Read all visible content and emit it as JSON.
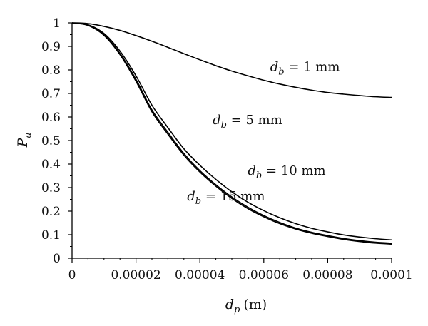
{
  "chart_data": {
    "type": "line",
    "title": "",
    "xlabel": {
      "var": "d",
      "sub": "p",
      "unit": "(m)"
    },
    "ylabel": {
      "var": "P",
      "sub": "a"
    },
    "xlim": [
      0,
      0.0001
    ],
    "ylim": [
      0,
      1
    ],
    "x_ticks": [
      {
        "value": 0,
        "label": "0"
      },
      {
        "value": 2e-05,
        "label": "0.00002"
      },
      {
        "value": 4e-05,
        "label": "0.00004"
      },
      {
        "value": 6e-05,
        "label": "0.00006"
      },
      {
        "value": 8e-05,
        "label": "0.00008"
      },
      {
        "value": 0.0001,
        "label": "0.0001"
      }
    ],
    "y_ticks": [
      {
        "value": 0,
        "label": "0"
      },
      {
        "value": 0.1,
        "label": "0.1"
      },
      {
        "value": 0.2,
        "label": "0.2"
      },
      {
        "value": 0.3,
        "label": "0.3"
      },
      {
        "value": 0.4,
        "label": "0.4"
      },
      {
        "value": 0.5,
        "label": "0.5"
      },
      {
        "value": 0.6,
        "label": "0.6"
      },
      {
        "value": 0.7,
        "label": "0.7"
      },
      {
        "value": 0.8,
        "label": "0.8"
      },
      {
        "value": 0.9,
        "label": "0.9"
      },
      {
        "value": 1,
        "label": "1"
      }
    ],
    "grid": false,
    "legend": "none",
    "line_color": "#000000",
    "x": [
      0,
      5e-06,
      1e-05,
      1.5e-05,
      2e-05,
      2.5e-05,
      3e-05,
      3.5e-05,
      4e-05,
      4.5e-05,
      5e-05,
      5.5e-05,
      6e-05,
      6.5e-05,
      7e-05,
      7.5e-05,
      8e-05,
      8.5e-05,
      9e-05,
      9.5e-05,
      0.0001
    ],
    "series": [
      {
        "label_var": "d",
        "label_sub": "b",
        "label_rest": " = 1 mm",
        "values": [
          1.0,
          0.997,
          0.985,
          0.968,
          0.946,
          0.922,
          0.896,
          0.869,
          0.843,
          0.818,
          0.795,
          0.775,
          0.756,
          0.74,
          0.726,
          0.714,
          0.704,
          0.697,
          0.691,
          0.686,
          0.683
        ]
      },
      {
        "label_var": "d",
        "label_sub": "b",
        "label_rest": " = 5 mm",
        "values": [
          1.0,
          0.992,
          0.955,
          0.88,
          0.775,
          0.65,
          0.555,
          0.465,
          0.395,
          0.335,
          0.282,
          0.238,
          0.202,
          0.172,
          0.147,
          0.127,
          0.112,
          0.099,
          0.09,
          0.083,
          0.078
        ]
      },
      {
        "label_var": "d",
        "label_sub": "b",
        "label_rest": " = 10 mm",
        "values": [
          1.0,
          0.99,
          0.95,
          0.87,
          0.76,
          0.63,
          0.535,
          0.445,
          0.372,
          0.312,
          0.26,
          0.217,
          0.181,
          0.152,
          0.128,
          0.11,
          0.096,
          0.084,
          0.075,
          0.068,
          0.064
        ]
      },
      {
        "label_var": "d",
        "label_sub": "b",
        "label_rest": " = 15 mm",
        "values": [
          1.0,
          0.989,
          0.947,
          0.865,
          0.752,
          0.622,
          0.527,
          0.438,
          0.366,
          0.306,
          0.254,
          0.211,
          0.176,
          0.147,
          0.124,
          0.106,
          0.092,
          0.08,
          0.071,
          0.064,
          0.06
        ]
      }
    ],
    "annotations": [
      {
        "series": 0,
        "x": 6.2e-05,
        "y": 0.795
      },
      {
        "series": 1,
        "x": 4.4e-05,
        "y": 0.57
      },
      {
        "series": 2,
        "x": 5.5e-05,
        "y": 0.355
      },
      {
        "series": 3,
        "x": 3.6e-05,
        "y": 0.245
      }
    ]
  }
}
